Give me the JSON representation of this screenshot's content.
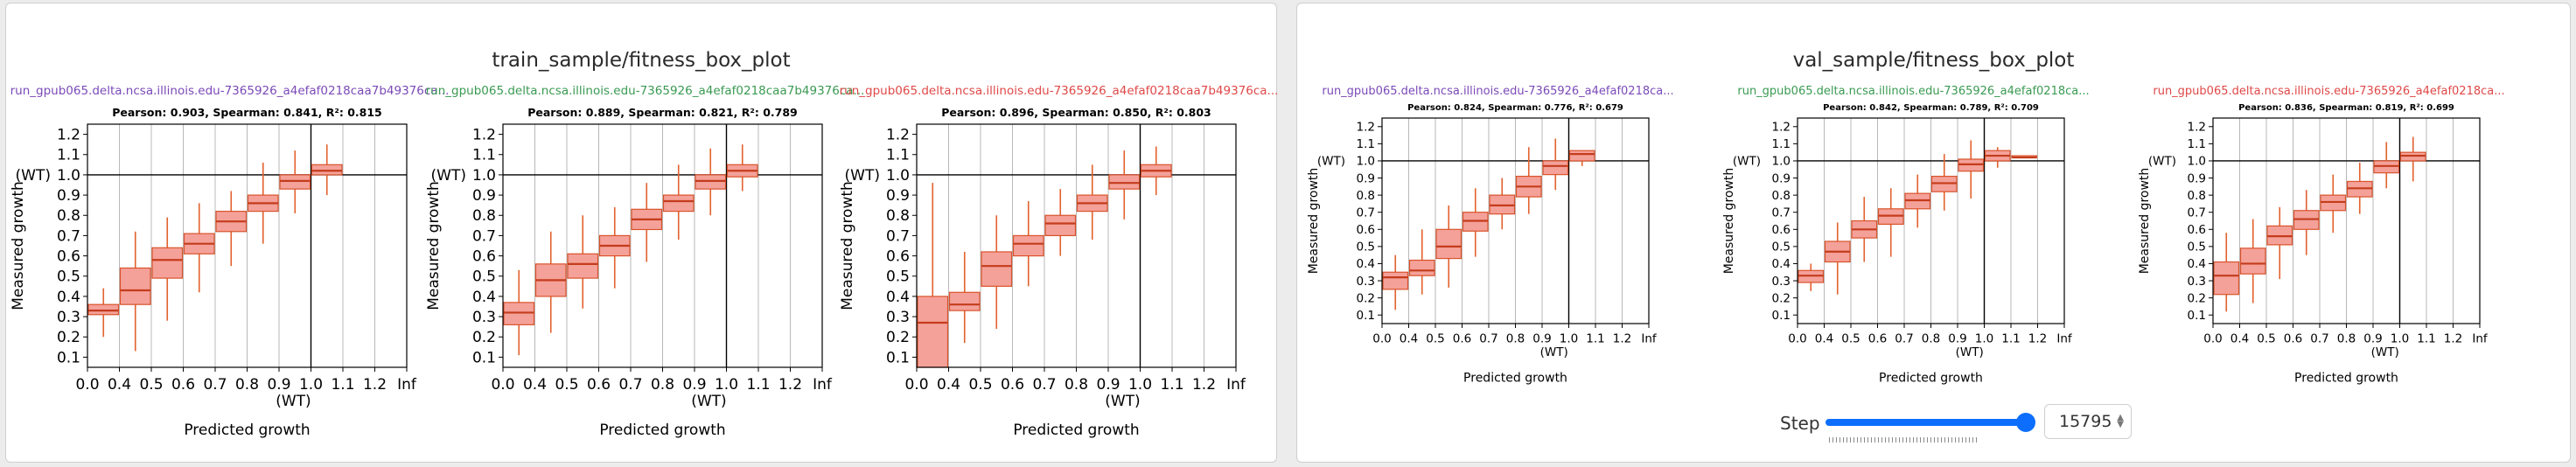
{
  "panels": [
    {
      "title": "train_sample/fitness_box_plot",
      "charts": [
        {
          "run_name": "run_gpub065.delta.ncsa.illinois.edu-7365926_a4efaf0218caa7b49376ca...",
          "run_color": "#7b4ab8",
          "stats": "Pearson: 0.903, Spearman: 0.841, R²: 0.815",
          "xlabel": "Predicted growth",
          "ylabel": "Measured growth",
          "x_ticks": [
            "0.0",
            "0.4",
            "0.5",
            "0.6",
            "0.7",
            "0.8",
            "0.9",
            "1.0",
            "1.1",
            "1.2",
            "Inf"
          ],
          "x_wt_label": "(WT)",
          "y_ticks": [
            "0.1",
            "0.2",
            "0.3",
            "0.4",
            "0.5",
            "0.6",
            "0.7",
            "0.8",
            "0.9",
            "1.0",
            "1.1",
            "1.2"
          ],
          "y_wt_label": "(WT)"
        },
        {
          "run_name": "run_gpub065.delta.ncsa.illinois.edu-7365926_a4efaf0218caa7b49376ca...",
          "run_color": "#3a9a52",
          "stats": "Pearson: 0.889, Spearman: 0.821, R²: 0.789",
          "xlabel": "Predicted growth",
          "ylabel": "Measured growth",
          "x_ticks": [
            "0.0",
            "0.4",
            "0.5",
            "0.6",
            "0.7",
            "0.8",
            "0.9",
            "1.0",
            "1.1",
            "1.2",
            "Inf"
          ],
          "x_wt_label": "(WT)",
          "y_ticks": [
            "0.1",
            "0.2",
            "0.3",
            "0.4",
            "0.5",
            "0.6",
            "0.7",
            "0.8",
            "0.9",
            "1.0",
            "1.1",
            "1.2"
          ],
          "y_wt_label": "(WT)"
        },
        {
          "run_name": "run_gpub065.delta.ncsa.illinois.edu-7365926_a4efaf0218caa7b49376ca...",
          "run_color": "#e04848",
          "stats": "Pearson: 0.896, Spearman: 0.850, R²: 0.803",
          "xlabel": "Predicted growth",
          "ylabel": "Measured growth",
          "x_ticks": [
            "0.0",
            "0.4",
            "0.5",
            "0.6",
            "0.7",
            "0.8",
            "0.9",
            "1.0",
            "1.1",
            "1.2",
            "Inf"
          ],
          "x_wt_label": "(WT)",
          "y_ticks": [
            "0.1",
            "0.2",
            "0.3",
            "0.4",
            "0.5",
            "0.6",
            "0.7",
            "0.8",
            "0.9",
            "1.0",
            "1.1",
            "1.2"
          ],
          "y_wt_label": "(WT)"
        }
      ]
    },
    {
      "title": "val_sample/fitness_box_plot",
      "charts": [
        {
          "run_name": "run_gpub065.delta.ncsa.illinois.edu-7365926_a4efaf0218ca...",
          "run_color": "#7b4ab8",
          "stats": "Pearson: 0.824, Spearman: 0.776, R²: 0.679",
          "xlabel": "Predicted growth",
          "ylabel": "Measured growth",
          "x_ticks": [
            "0.0",
            "0.4",
            "0.5",
            "0.6",
            "0.7",
            "0.8",
            "0.9",
            "1.0",
            "1.1",
            "1.2",
            "Inf"
          ],
          "x_wt_label": "(WT)",
          "y_ticks": [
            "0.1",
            "0.2",
            "0.3",
            "0.4",
            "0.5",
            "0.6",
            "0.7",
            "0.8",
            "0.9",
            "1.0",
            "1.1",
            "1.2"
          ],
          "y_wt_label": "(WT)"
        },
        {
          "run_name": "run_gpub065.delta.ncsa.illinois.edu-7365926_a4efaf0218ca...",
          "run_color": "#3a9a52",
          "stats": "Pearson: 0.842, Spearman: 0.789, R²: 0.709",
          "xlabel": "Predicted growth",
          "ylabel": "Measured growth",
          "x_ticks": [
            "0.0",
            "0.4",
            "0.5",
            "0.6",
            "0.7",
            "0.8",
            "0.9",
            "1.0",
            "1.1",
            "1.2",
            "Inf"
          ],
          "x_wt_label": "(WT)",
          "y_ticks": [
            "0.1",
            "0.2",
            "0.3",
            "0.4",
            "0.5",
            "0.6",
            "0.7",
            "0.8",
            "0.9",
            "1.0",
            "1.1",
            "1.2"
          ],
          "y_wt_label": "(WT)"
        },
        {
          "run_name": "run_gpub065.delta.ncsa.illinois.edu-7365926_a4efaf0218ca...",
          "run_color": "#e04848",
          "stats": "Pearson: 0.836, Spearman: 0.819, R²: 0.699",
          "xlabel": "Predicted growth",
          "ylabel": "Measured growth",
          "x_ticks": [
            "0.0",
            "0.4",
            "0.5",
            "0.6",
            "0.7",
            "0.8",
            "0.9",
            "1.0",
            "1.1",
            "1.2",
            "Inf"
          ],
          "x_wt_label": "(WT)",
          "y_ticks": [
            "0.1",
            "0.2",
            "0.3",
            "0.4",
            "0.5",
            "0.6",
            "0.7",
            "0.8",
            "0.9",
            "1.0",
            "1.1",
            "1.2"
          ],
          "y_wt_label": "(WT)"
        }
      ]
    }
  ],
  "step": {
    "label": "Step",
    "value": "15795",
    "slider_fraction": 1.0
  },
  "colors": {
    "box_fill": "#f4a199",
    "box_stroke": "#d9532b",
    "median": "#c43c1c",
    "whisker": "#e2622e"
  },
  "chart_data": [
    {
      "type": "box",
      "panel": "train_sample/fitness_box_plot",
      "bins": [
        "0.0-0.4",
        "0.4-0.5",
        "0.5-0.6",
        "0.6-0.7",
        "0.7-0.8",
        "0.8-0.9",
        "0.9-1.0",
        "1.0-1.1",
        "1.1-1.2",
        "1.2-Inf"
      ],
      "ylim": [
        0.05,
        1.25
      ],
      "boxes": [
        {
          "low": 0.2,
          "q1": 0.31,
          "median": 0.33,
          "q3": 0.36,
          "high": 0.44
        },
        {
          "low": 0.13,
          "q1": 0.36,
          "median": 0.43,
          "q3": 0.54,
          "high": 0.72
        },
        {
          "low": 0.28,
          "q1": 0.49,
          "median": 0.58,
          "q3": 0.64,
          "high": 0.79
        },
        {
          "low": 0.42,
          "q1": 0.61,
          "median": 0.66,
          "q3": 0.71,
          "high": 0.86
        },
        {
          "low": 0.55,
          "q1": 0.72,
          "median": 0.77,
          "q3": 0.82,
          "high": 0.92
        },
        {
          "low": 0.66,
          "q1": 0.82,
          "median": 0.86,
          "q3": 0.9,
          "high": 1.06
        },
        {
          "low": 0.81,
          "q1": 0.93,
          "median": 0.97,
          "q3": 1.0,
          "high": 1.12
        },
        {
          "low": 0.9,
          "q1": 1.0,
          "median": 1.02,
          "q3": 1.05,
          "high": 1.15
        }
      ]
    },
    {
      "type": "box",
      "panel": "train_sample/fitness_box_plot",
      "bins": [
        "0.0-0.4",
        "0.4-0.5",
        "0.5-0.6",
        "0.6-0.7",
        "0.7-0.8",
        "0.8-0.9",
        "0.9-1.0",
        "1.0-1.1",
        "1.1-1.2",
        "1.2-Inf"
      ],
      "ylim": [
        0.05,
        1.25
      ],
      "boxes": [
        {
          "low": 0.11,
          "q1": 0.26,
          "median": 0.32,
          "q3": 0.37,
          "high": 0.53
        },
        {
          "low": 0.22,
          "q1": 0.4,
          "median": 0.48,
          "q3": 0.56,
          "high": 0.72
        },
        {
          "low": 0.34,
          "q1": 0.49,
          "median": 0.56,
          "q3": 0.61,
          "high": 0.8
        },
        {
          "low": 0.44,
          "q1": 0.6,
          "median": 0.65,
          "q3": 0.7,
          "high": 0.84
        },
        {
          "low": 0.57,
          "q1": 0.73,
          "median": 0.78,
          "q3": 0.83,
          "high": 0.96
        },
        {
          "low": 0.68,
          "q1": 0.82,
          "median": 0.87,
          "q3": 0.9,
          "high": 1.05
        },
        {
          "low": 0.8,
          "q1": 0.93,
          "median": 0.97,
          "q3": 1.0,
          "high": 1.13
        },
        {
          "low": 0.92,
          "q1": 0.99,
          "median": 1.02,
          "q3": 1.05,
          "high": 1.15
        }
      ]
    },
    {
      "type": "box",
      "panel": "train_sample/fitness_box_plot",
      "bins": [
        "0.0-0.4",
        "0.4-0.5",
        "0.5-0.6",
        "0.6-0.7",
        "0.7-0.8",
        "0.8-0.9",
        "0.9-1.0",
        "1.0-1.1",
        "1.1-1.2",
        "1.2-Inf"
      ],
      "ylim": [
        0.05,
        1.25
      ],
      "boxes": [
        {
          "low": 0.05,
          "q1": 0.05,
          "median": 0.27,
          "q3": 0.4,
          "high": 0.96
        },
        {
          "low": 0.17,
          "q1": 0.33,
          "median": 0.36,
          "q3": 0.42,
          "high": 0.62
        },
        {
          "low": 0.24,
          "q1": 0.45,
          "median": 0.55,
          "q3": 0.62,
          "high": 0.8
        },
        {
          "low": 0.45,
          "q1": 0.6,
          "median": 0.66,
          "q3": 0.7,
          "high": 0.87
        },
        {
          "low": 0.6,
          "q1": 0.7,
          "median": 0.76,
          "q3": 0.8,
          "high": 0.93
        },
        {
          "low": 0.68,
          "q1": 0.82,
          "median": 0.86,
          "q3": 0.9,
          "high": 1.05
        },
        {
          "low": 0.78,
          "q1": 0.93,
          "median": 0.96,
          "q3": 1.0,
          "high": 1.12
        },
        {
          "low": 0.9,
          "q1": 0.99,
          "median": 1.02,
          "q3": 1.05,
          "high": 1.14
        }
      ]
    },
    {
      "type": "box",
      "panel": "val_sample/fitness_box_plot",
      "bins": [
        "0.0-0.4",
        "0.4-0.5",
        "0.5-0.6",
        "0.6-0.7",
        "0.7-0.8",
        "0.8-0.9",
        "0.9-1.0",
        "1.0-1.1",
        "1.1-1.2",
        "1.2-Inf"
      ],
      "ylim": [
        0.05,
        1.25
      ],
      "boxes": [
        {
          "low": 0.13,
          "q1": 0.25,
          "median": 0.32,
          "q3": 0.35,
          "high": 0.45
        },
        {
          "low": 0.22,
          "q1": 0.33,
          "median": 0.36,
          "q3": 0.42,
          "high": 0.6
        },
        {
          "low": 0.26,
          "q1": 0.43,
          "median": 0.5,
          "q3": 0.6,
          "high": 0.74
        },
        {
          "low": 0.44,
          "q1": 0.59,
          "median": 0.65,
          "q3": 0.7,
          "high": 0.84
        },
        {
          "low": 0.6,
          "q1": 0.69,
          "median": 0.74,
          "q3": 0.8,
          "high": 0.9
        },
        {
          "low": 0.69,
          "q1": 0.79,
          "median": 0.85,
          "q3": 0.91,
          "high": 1.08
        },
        {
          "low": 0.83,
          "q1": 0.92,
          "median": 0.97,
          "q3": 1.0,
          "high": 1.13
        },
        {
          "low": 0.97,
          "q1": 1.0,
          "median": 1.04,
          "q3": 1.06,
          "high": 1.06
        }
      ]
    },
    {
      "type": "box",
      "panel": "val_sample/fitness_box_plot",
      "bins": [
        "0.0-0.4",
        "0.4-0.5",
        "0.5-0.6",
        "0.6-0.7",
        "0.7-0.8",
        "0.8-0.9",
        "0.9-1.0",
        "1.0-1.1",
        "1.1-1.2",
        "1.2-Inf"
      ],
      "ylim": [
        0.05,
        1.25
      ],
      "boxes": [
        {
          "low": 0.24,
          "q1": 0.29,
          "median": 0.33,
          "q3": 0.36,
          "high": 0.4
        },
        {
          "low": 0.22,
          "q1": 0.41,
          "median": 0.47,
          "q3": 0.53,
          "high": 0.64
        },
        {
          "low": 0.41,
          "q1": 0.55,
          "median": 0.6,
          "q3": 0.65,
          "high": 0.79
        },
        {
          "low": 0.44,
          "q1": 0.63,
          "median": 0.68,
          "q3": 0.72,
          "high": 0.84
        },
        {
          "low": 0.61,
          "q1": 0.72,
          "median": 0.77,
          "q3": 0.81,
          "high": 0.92
        },
        {
          "low": 0.71,
          "q1": 0.82,
          "median": 0.87,
          "q3": 0.91,
          "high": 1.04
        },
        {
          "low": 0.78,
          "q1": 0.94,
          "median": 0.98,
          "q3": 1.01,
          "high": 1.12
        },
        {
          "low": 0.96,
          "q1": 1.0,
          "median": 1.03,
          "q3": 1.06,
          "high": 1.08
        },
        {
          "low": 1.02,
          "q1": 1.02,
          "median": 1.02,
          "q3": 1.03,
          "high": 1.03
        }
      ]
    },
    {
      "type": "box",
      "panel": "val_sample/fitness_box_plot",
      "bins": [
        "0.0-0.4",
        "0.4-0.5",
        "0.5-0.6",
        "0.6-0.7",
        "0.7-0.8",
        "0.8-0.9",
        "0.9-1.0",
        "1.0-1.1",
        "1.1-1.2",
        "1.2-Inf"
      ],
      "ylim": [
        0.05,
        1.25
      ],
      "boxes": [
        {
          "low": 0.12,
          "q1": 0.22,
          "median": 0.33,
          "q3": 0.41,
          "high": 0.58
        },
        {
          "low": 0.17,
          "q1": 0.34,
          "median": 0.4,
          "q3": 0.49,
          "high": 0.66
        },
        {
          "low": 0.31,
          "q1": 0.51,
          "median": 0.56,
          "q3": 0.62,
          "high": 0.73
        },
        {
          "low": 0.45,
          "q1": 0.6,
          "median": 0.66,
          "q3": 0.71,
          "high": 0.83
        },
        {
          "low": 0.58,
          "q1": 0.71,
          "median": 0.76,
          "q3": 0.8,
          "high": 0.92
        },
        {
          "low": 0.69,
          "q1": 0.79,
          "median": 0.84,
          "q3": 0.88,
          "high": 0.99
        },
        {
          "low": 0.84,
          "q1": 0.93,
          "median": 0.97,
          "q3": 1.0,
          "high": 1.11
        },
        {
          "low": 0.88,
          "q1": 1.0,
          "median": 1.03,
          "q3": 1.05,
          "high": 1.14
        }
      ]
    }
  ]
}
